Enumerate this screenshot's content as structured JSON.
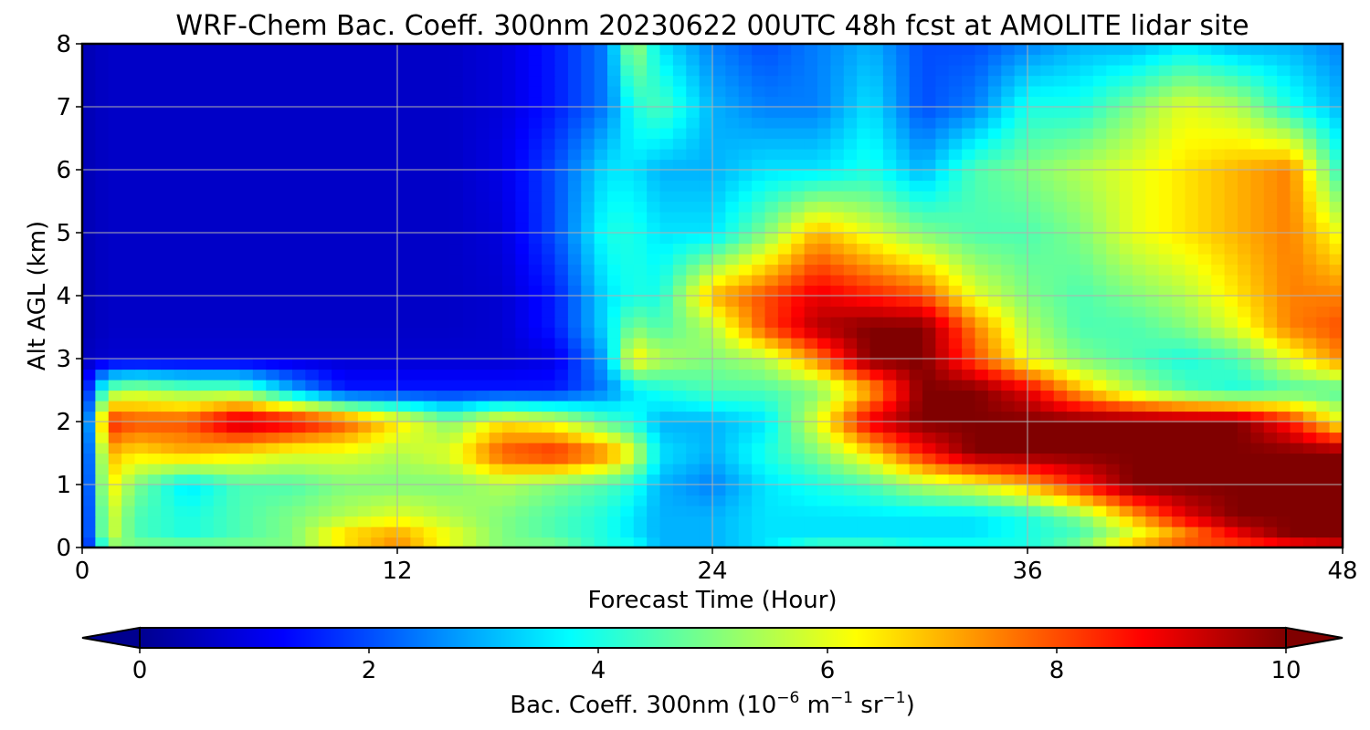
{
  "chart_data": {
    "type": "heatmap",
    "title": "WRF-Chem Bac. Coeff. 300nm  20230622 00UTC 48h fcst at AMOLITE lidar site",
    "xlabel": "Forecast Time (Hour)",
    "ylabel": "Alt AGL (km)",
    "xlim": [
      0,
      48
    ],
    "ylim": [
      0,
      8
    ],
    "x_ticks": [
      "0",
      "12",
      "24",
      "36",
      "48"
    ],
    "y_ticks": [
      "0",
      "1",
      "2",
      "3",
      "4",
      "5",
      "6",
      "7",
      "8"
    ],
    "grid": true,
    "colormap": "jet",
    "colorbar": {
      "label_main": "Bac. Coeff. 300nm  (10",
      "label_exp1": "−6",
      "label_mid": " m",
      "label_exp2": "−1",
      "label_mid2": " sr",
      "label_exp3": "−1",
      "label_end": ")",
      "ticks": [
        "0",
        "2",
        "4",
        "6",
        "8",
        "10"
      ],
      "range": [
        0,
        10
      ],
      "extend": "both",
      "placement": "bottom"
    },
    "x": [
      0,
      1,
      2,
      4,
      6,
      8,
      10,
      12,
      14,
      16,
      18,
      20,
      21,
      22,
      24,
      26,
      28,
      30,
      32,
      34,
      36,
      38,
      40,
      42,
      44,
      46,
      48
    ],
    "y": [
      0,
      0.25,
      0.5,
      1,
      1.5,
      2,
      2.5,
      3,
      3.5,
      4,
      5,
      6,
      7,
      8
    ],
    "values": [
      [
        0.8,
        5,
        5,
        5,
        5,
        5,
        6.5,
        7.5,
        6,
        5,
        5,
        4,
        4,
        3,
        3,
        3.5,
        4.5,
        4.5,
        4,
        4,
        4,
        5,
        7,
        8,
        8,
        8.5,
        9
      ],
      [
        0.8,
        6,
        4.5,
        4,
        4.5,
        5,
        6.5,
        7,
        6,
        5,
        4.5,
        4,
        3.5,
        3,
        3,
        3.5,
        3.5,
        3.5,
        3.5,
        3.5,
        4,
        4.5,
        6,
        7.5,
        9,
        10,
        10
      ],
      [
        0.8,
        6,
        4.5,
        4,
        4.5,
        5,
        5.5,
        6,
        5.5,
        5,
        4.5,
        4,
        3.5,
        3,
        3,
        3.5,
        3.5,
        3.5,
        3.5,
        3.5,
        4,
        5,
        7,
        9,
        10,
        10,
        10
      ],
      [
        0.8,
        6.5,
        5,
        3.5,
        4.5,
        4.5,
        5,
        5,
        5,
        5.5,
        5,
        4.5,
        4,
        3,
        2.5,
        3.5,
        4,
        4.5,
        5.5,
        6,
        7,
        8.5,
        10,
        10,
        10,
        10,
        10
      ],
      [
        0.8,
        7,
        6.5,
        7,
        6.5,
        6,
        6,
        5.5,
        6,
        8,
        8.5,
        7.5,
        6,
        3.5,
        3,
        4,
        5,
        6.5,
        8.5,
        10,
        10,
        10,
        10,
        10,
        10,
        10,
        10
      ],
      [
        0.8,
        8.5,
        8,
        8,
        9.5,
        9,
        8,
        6.5,
        5,
        6.5,
        6,
        4.5,
        4,
        3,
        3,
        3.5,
        6,
        9,
        10,
        10,
        10,
        10,
        10,
        10,
        10,
        8.5,
        6
      ],
      [
        0.8,
        5,
        5.5,
        5,
        5,
        3,
        1.5,
        1.5,
        1.5,
        1.5,
        1.5,
        2.5,
        3.5,
        4,
        4.5,
        4.5,
        5,
        7,
        10,
        10,
        9,
        7,
        5.5,
        4.5,
        4,
        4.5,
        4.5
      ],
      [
        0.6,
        0.8,
        0.8,
        0.8,
        0.8,
        0.8,
        0.8,
        0.8,
        0.8,
        0.8,
        1,
        3,
        6.5,
        5.5,
        5,
        5.5,
        7.5,
        10,
        10,
        8,
        6,
        5,
        4.5,
        4,
        4.5,
        6,
        7.5
      ],
      [
        0.5,
        0.7,
        0.7,
        0.7,
        0.7,
        0.7,
        0.7,
        0.7,
        0.7,
        0.8,
        1.5,
        3.5,
        5,
        4.5,
        5.5,
        8,
        9.5,
        10,
        10,
        7.5,
        5.5,
        4.5,
        4.5,
        5,
        6,
        7.5,
        8
      ],
      [
        0.5,
        0.7,
        0.7,
        0.7,
        0.7,
        0.7,
        0.7,
        0.7,
        0.7,
        0.8,
        1.5,
        3.5,
        4,
        4,
        7,
        8,
        9,
        8.5,
        8,
        6,
        5,
        4.5,
        5,
        5.5,
        6.5,
        7.5,
        7.5
      ],
      [
        0.5,
        0.7,
        0.7,
        0.7,
        0.7,
        0.7,
        0.7,
        0.7,
        0.7,
        0.9,
        2,
        4,
        4,
        3.5,
        3.5,
        5,
        7,
        6,
        5,
        4.5,
        4.5,
        5,
        6,
        6.5,
        7,
        7.5,
        6
      ],
      [
        0.5,
        0.7,
        0.7,
        0.7,
        0.7,
        0.7,
        0.7,
        0.7,
        0.7,
        1,
        2,
        3.5,
        3.5,
        3,
        3,
        3.5,
        3.5,
        4,
        3,
        4.5,
        5,
        5.5,
        6,
        6.5,
        7,
        7.5,
        4
      ],
      [
        0.5,
        0.7,
        0.7,
        0.7,
        0.7,
        0.7,
        0.7,
        0.7,
        0.7,
        0.9,
        1.5,
        2.5,
        4,
        4.5,
        3,
        2.5,
        2.5,
        3.5,
        2,
        2.5,
        4,
        4,
        5,
        6,
        5.5,
        4,
        3
      ],
      [
        0.5,
        0.7,
        0.7,
        0.7,
        0.7,
        0.7,
        0.7,
        0.7,
        0.7,
        0.9,
        1.5,
        2.5,
        5.5,
        3.5,
        2.5,
        2,
        2.5,
        3,
        2,
        2,
        2.5,
        3,
        3,
        3.5,
        3,
        3,
        2.5
      ]
    ]
  }
}
